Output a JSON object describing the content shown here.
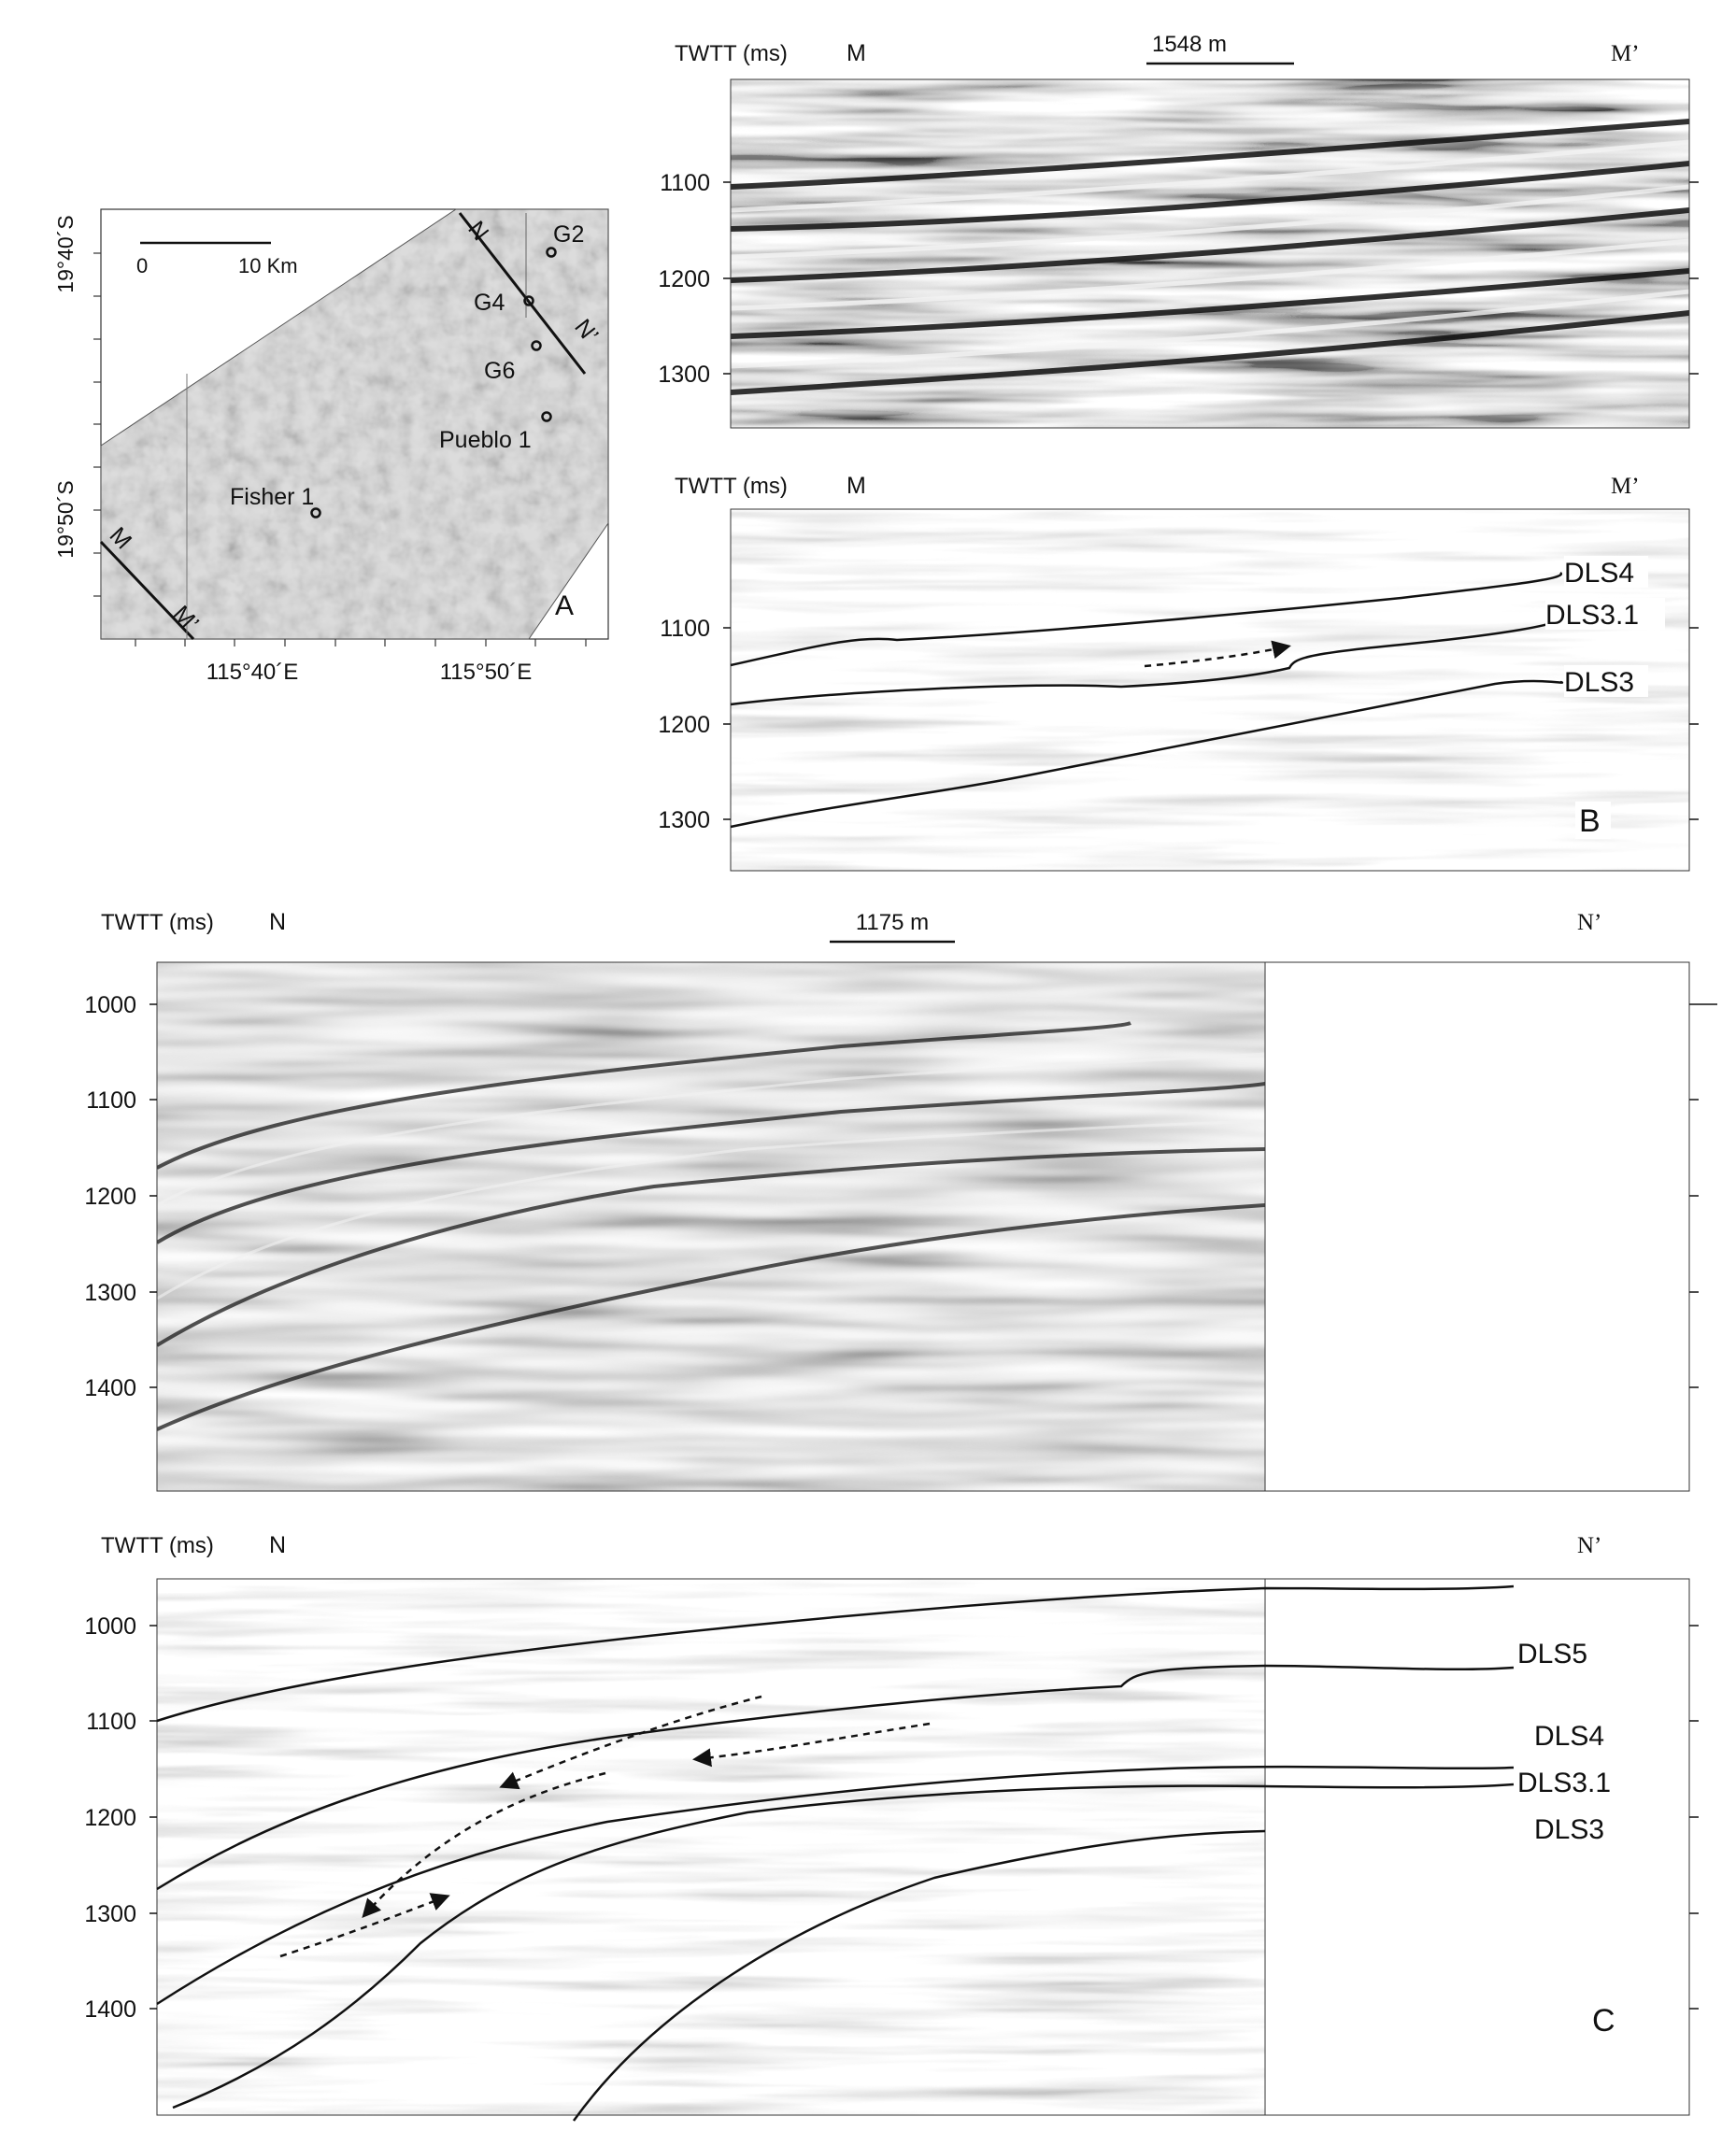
{
  "map": {
    "lat_labels": [
      "19°40´S",
      "19°50´S"
    ],
    "lon_labels": [
      "115°40´E",
      "115°50´E"
    ],
    "scale_zero": "0",
    "scale_label": "10 Km",
    "wells": [
      "G2",
      "G4",
      "G6",
      "Pueblo 1",
      "Fisher 1"
    ],
    "line_ends": {
      "n": "N",
      "n_prime": "N’",
      "m": "M",
      "m_prime": "M’"
    },
    "panel_letter": "A"
  },
  "panel_top": {
    "axis_title": "TWTT (ms)",
    "left_end": "M",
    "right_end": "M’",
    "scale_label": "1548 m",
    "ticks": [
      "1100",
      "1200",
      "1300"
    ]
  },
  "panel_b": {
    "axis_title": "TWTT (ms)",
    "left_end": "M",
    "right_end": "M’",
    "ticks": [
      "1100",
      "1200",
      "1300"
    ],
    "horizons": [
      "DLS4",
      "DLS3.1",
      "DLS3"
    ],
    "panel_letter": "B"
  },
  "panel_n": {
    "axis_title": "TWTT (ms)",
    "left_end": "N",
    "right_end": "N’",
    "scale_label": "1175 m",
    "ticks": [
      "1000",
      "1100",
      "1200",
      "1300",
      "1400"
    ]
  },
  "panel_c": {
    "axis_title": "TWTT (ms)",
    "left_end": "N",
    "right_end": "N’",
    "ticks": [
      "1000",
      "1100",
      "1200",
      "1300",
      "1400"
    ],
    "horizons": [
      "DLS5",
      "DLS4",
      "DLS3.1",
      "DLS3"
    ],
    "panel_letter": "C"
  }
}
